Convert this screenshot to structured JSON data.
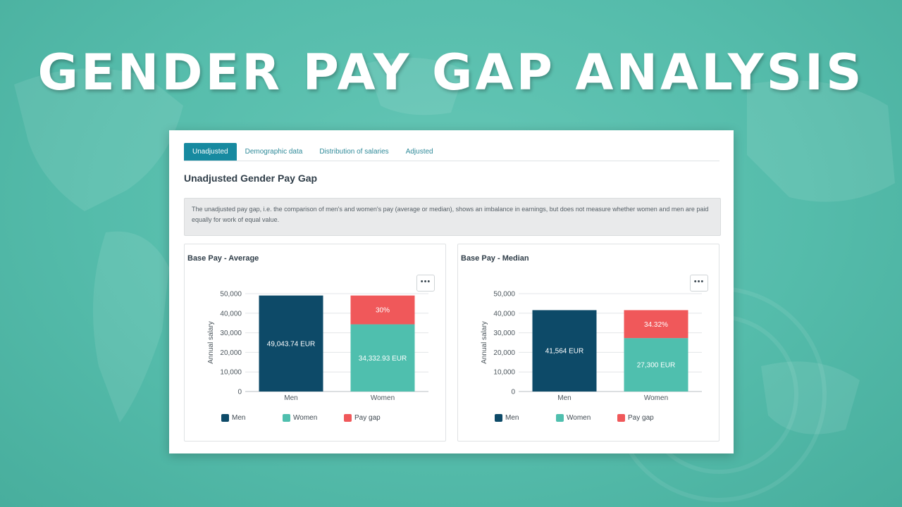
{
  "banner": {
    "title": "GENDER PAY GAP ANALYSIS"
  },
  "tabs": [
    {
      "label": "Unadjusted",
      "active": true
    },
    {
      "label": "Demographic data",
      "active": false
    },
    {
      "label": "Distribution of salaries",
      "active": false
    },
    {
      "label": "Adjusted",
      "active": false
    }
  ],
  "page_title": "Unadjusted Gender Pay Gap",
  "info_text": "The unadjusted pay gap, i.e. the comparison of men's and women's pay (average or median), shows an imbalance in earnings, but does not measure whether women and men are paid equally for work of equal value.",
  "menu_button_label": "•••",
  "colors": {
    "men": "#0d4a68",
    "women": "#4fbfae",
    "gap": "#f0585a",
    "tab_active": "#178aa0"
  },
  "chart_data": [
    {
      "type": "bar",
      "title": "Base Pay - Average",
      "ylabel": "Annual salary",
      "ylim": [
        0,
        50000
      ],
      "yticks": [
        "0",
        "10,000",
        "20,000",
        "30,000",
        "40,000",
        "50,000"
      ],
      "categories": [
        "Men",
        "Women"
      ],
      "series": [
        {
          "name": "Men",
          "values": [
            49043.74,
            0
          ],
          "labels": [
            "49,043.74 EUR",
            ""
          ]
        },
        {
          "name": "Women",
          "values": [
            0,
            34332.93
          ],
          "labels": [
            "",
            "34,332.93 EUR"
          ]
        },
        {
          "name": "Pay gap",
          "values": [
            0,
            14710.81
          ],
          "labels": [
            "",
            "30%"
          ]
        }
      ],
      "legend": [
        "Men",
        "Women",
        "Pay gap"
      ]
    },
    {
      "type": "bar",
      "title": "Base Pay - Median",
      "ylabel": "Annual salary",
      "ylim": [
        0,
        50000
      ],
      "yticks": [
        "0",
        "10,000",
        "20,000",
        "30,000",
        "40,000",
        "50,000"
      ],
      "categories": [
        "Men",
        "Women"
      ],
      "series": [
        {
          "name": "Men",
          "values": [
            41564,
            0
          ],
          "labels": [
            "41,564 EUR",
            ""
          ]
        },
        {
          "name": "Women",
          "values": [
            0,
            27300
          ],
          "labels": [
            "",
            "27,300 EUR"
          ]
        },
        {
          "name": "Pay gap",
          "values": [
            0,
            14264
          ],
          "labels": [
            "",
            "34.32%"
          ]
        }
      ],
      "legend": [
        "Men",
        "Women",
        "Pay gap"
      ]
    }
  ]
}
